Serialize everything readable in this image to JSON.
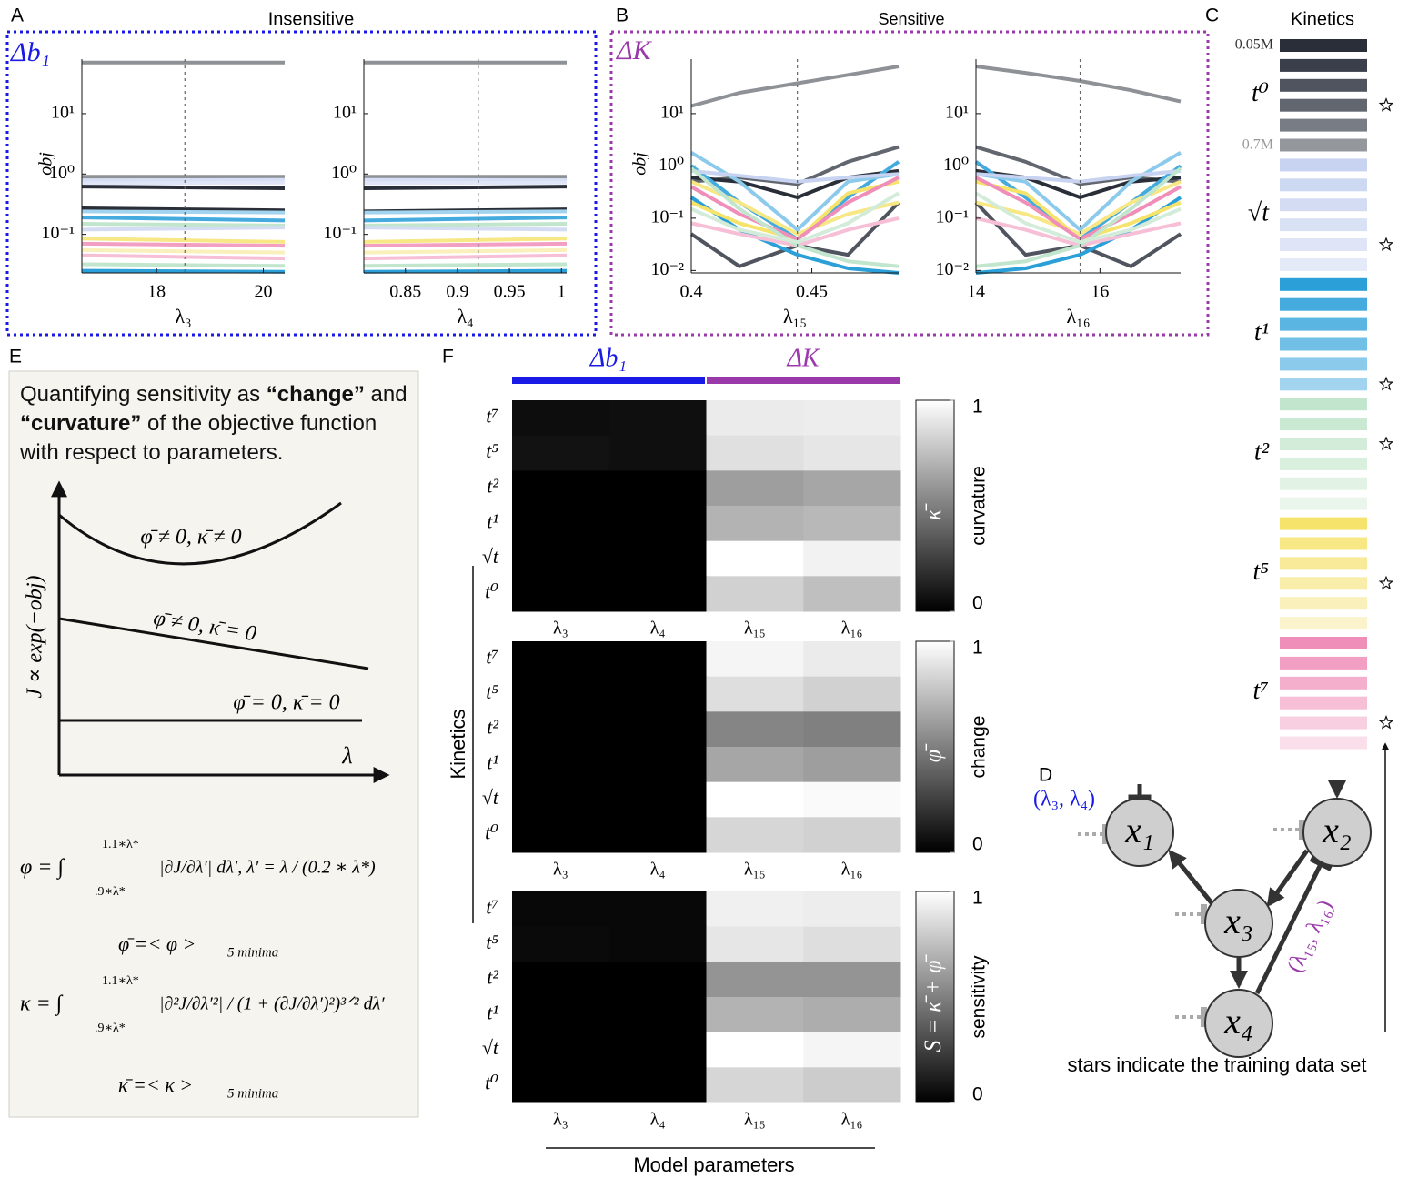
{
  "panel_labels": [
    "A",
    "B",
    "C",
    "D",
    "E",
    "F"
  ],
  "panel_a": {
    "title": "Insensitive",
    "box_label": "Δb₁"
  },
  "panel_b": {
    "title": "Sensitive",
    "box_label": "ΔK"
  },
  "chart_data": [
    {
      "type": "line",
      "y_scale": "log",
      "ylabel": "obj",
      "xlabel": "λ₃",
      "x": [
        16.6,
        20.4
      ],
      "xlim": [
        16.6,
        20.4
      ],
      "xticks": [
        18,
        20
      ],
      "ylim": [
        0.023,
        80
      ],
      "yticks": [
        {
          "value": 0.1,
          "label": "10⁻¹"
        },
        {
          "value": 1,
          "label": "10⁰"
        },
        {
          "value": 10,
          "label": "10¹"
        }
      ],
      "reference_x": 18.53,
      "series": [
        {
          "color": "#8e9196",
          "values": [
            70,
            70
          ]
        },
        {
          "color": "#8e9196",
          "values": [
            0.9,
            0.9
          ]
        },
        {
          "color": "#d6def5",
          "values": [
            0.78,
            0.8
          ]
        },
        {
          "color": "#e0e6f7",
          "values": [
            0.7,
            0.72
          ]
        },
        {
          "color": "#2a2e38",
          "values": [
            0.62,
            0.58
          ]
        },
        {
          "color": "#2a2e38",
          "values": [
            0.27,
            0.25
          ]
        },
        {
          "color": "#a3d4ef",
          "values": [
            0.24,
            0.23
          ]
        },
        {
          "color": "#45aadd",
          "values": [
            0.19,
            0.17
          ]
        },
        {
          "color": "#c2e6cd",
          "values": [
            0.15,
            0.14
          ]
        },
        {
          "color": "#d3dcf3",
          "values": [
            0.12,
            0.13
          ]
        },
        {
          "color": "#f7e785",
          "values": [
            0.085,
            0.075
          ]
        },
        {
          "color": "#f29fc3",
          "values": [
            0.07,
            0.065
          ]
        },
        {
          "color": "#faf0bb",
          "values": [
            0.055,
            0.05
          ]
        },
        {
          "color": "#f6bfd6",
          "values": [
            0.045,
            0.04
          ]
        },
        {
          "color": "#c2e6cd",
          "values": [
            0.032,
            0.03
          ]
        },
        {
          "color": "#2a9fd8",
          "values": [
            0.025,
            0.024
          ]
        }
      ]
    },
    {
      "type": "line",
      "y_scale": "log",
      "xlabel": "λ₄",
      "x": [
        0.81,
        1.005
      ],
      "xlim": [
        0.81,
        1.005
      ],
      "xticks": [
        0.85,
        0.9,
        0.95,
        1
      ],
      "ylim": [
        0.023,
        80
      ],
      "yticks": [
        {
          "value": 0.1,
          "label": "10⁻¹"
        },
        {
          "value": 1,
          "label": "10⁰"
        },
        {
          "value": 10,
          "label": "10¹"
        }
      ],
      "reference_x": 0.92,
      "series": [
        {
          "color": "#8e9196",
          "values": [
            70,
            70
          ]
        },
        {
          "color": "#8e9196",
          "values": [
            0.9,
            0.9
          ]
        },
        {
          "color": "#d6def5",
          "values": [
            0.8,
            0.79
          ]
        },
        {
          "color": "#e0e6f7",
          "values": [
            0.71,
            0.72
          ]
        },
        {
          "color": "#2a2e38",
          "values": [
            0.58,
            0.62
          ]
        },
        {
          "color": "#2a2e38",
          "values": [
            0.24,
            0.26
          ]
        },
        {
          "color": "#a3d4ef",
          "values": [
            0.23,
            0.24
          ]
        },
        {
          "color": "#45aadd",
          "values": [
            0.17,
            0.19
          ]
        },
        {
          "color": "#c2e6cd",
          "values": [
            0.14,
            0.15
          ]
        },
        {
          "color": "#d3dcf3",
          "values": [
            0.13,
            0.12
          ]
        },
        {
          "color": "#f7e785",
          "values": [
            0.075,
            0.085
          ]
        },
        {
          "color": "#f29fc3",
          "values": [
            0.065,
            0.07
          ]
        },
        {
          "color": "#faf0bb",
          "values": [
            0.05,
            0.055
          ]
        },
        {
          "color": "#f6bfd6",
          "values": [
            0.04,
            0.045
          ]
        },
        {
          "color": "#c2e6cd",
          "values": [
            0.03,
            0.032
          ]
        },
        {
          "color": "#2a9fd8",
          "values": [
            0.024,
            0.025
          ]
        }
      ]
    },
    {
      "type": "line",
      "y_scale": "log",
      "ylabel": "obj",
      "xlabel": "λ₁₅",
      "x": [
        0.4,
        0.42,
        0.444,
        0.465,
        0.486
      ],
      "xlim": [
        0.4,
        0.486
      ],
      "xticks": [
        0.4,
        0.45
      ],
      "ylim": [
        0.009,
        110
      ],
      "yticks": [
        {
          "value": 0.01,
          "label": "10⁻²"
        },
        {
          "value": 0.1,
          "label": "10⁻¹"
        },
        {
          "value": 1,
          "label": "10⁰"
        },
        {
          "value": 10,
          "label": "10¹"
        }
      ],
      "reference_x": 0.444,
      "series": [
        {
          "color": "#8e9196",
          "values": [
            14,
            25,
            38,
            55,
            80
          ]
        },
        {
          "color": "#62666f",
          "values": [
            0.5,
            0.6,
            0.45,
            1.2,
            2.3
          ]
        },
        {
          "color": "#2a2e38",
          "values": [
            0.6,
            0.5,
            0.25,
            0.6,
            0.8
          ]
        },
        {
          "color": "#4f545e",
          "values": [
            0.05,
            0.012,
            0.03,
            0.02,
            0.2
          ]
        },
        {
          "color": "#2a9fd8",
          "values": [
            0.25,
            0.06,
            0.02,
            0.011,
            0.009
          ]
        },
        {
          "color": "#45aadd",
          "values": [
            1.0,
            0.2,
            0.04,
            0.25,
            1.2
          ]
        },
        {
          "color": "#8bcaeb",
          "values": [
            1.8,
            0.5,
            0.06,
            0.5,
            0.7
          ]
        },
        {
          "color": "#c7d3f1",
          "values": [
            0.8,
            0.65,
            0.5,
            0.6,
            0.7
          ]
        },
        {
          "color": "#f6e36b",
          "values": [
            0.2,
            0.08,
            0.04,
            0.3,
            0.5
          ]
        },
        {
          "color": "#f7e785",
          "values": [
            0.5,
            0.2,
            0.05,
            0.12,
            0.2
          ]
        },
        {
          "color": "#ef8fb9",
          "values": [
            0.4,
            0.12,
            0.04,
            0.2,
            0.6
          ]
        },
        {
          "color": "#f6bfd6",
          "values": [
            0.08,
            0.05,
            0.03,
            0.06,
            0.1
          ]
        },
        {
          "color": "#c2e6cd",
          "values": [
            0.9,
            0.15,
            0.03,
            0.015,
            0.012
          ]
        },
        {
          "color": "#d2ecd9",
          "values": [
            0.15,
            0.06,
            0.035,
            0.08,
            0.3
          ]
        }
      ]
    },
    {
      "type": "line",
      "y_scale": "log",
      "xlabel": "λ₁₆",
      "x": [
        14,
        14.8,
        15.68,
        16.5,
        17.3
      ],
      "xlim": [
        14,
        17.3
      ],
      "xticks": [
        14,
        16
      ],
      "ylim": [
        0.009,
        110
      ],
      "yticks": [
        {
          "value": 0.01,
          "label": "10⁻²"
        },
        {
          "value": 0.1,
          "label": "10⁻¹"
        },
        {
          "value": 1,
          "label": "10⁰"
        },
        {
          "value": 10,
          "label": "10¹"
        }
      ],
      "reference_x": 15.68,
      "series": [
        {
          "color": "#8e9196",
          "values": [
            80,
            60,
            42,
            28,
            17
          ]
        },
        {
          "color": "#62666f",
          "values": [
            2.3,
            1.2,
            0.45,
            0.6,
            0.5
          ]
        },
        {
          "color": "#2a2e38",
          "values": [
            0.8,
            0.6,
            0.25,
            0.5,
            0.6
          ]
        },
        {
          "color": "#4f545e",
          "values": [
            0.2,
            0.02,
            0.03,
            0.012,
            0.05
          ]
        },
        {
          "color": "#2a9fd8",
          "values": [
            0.009,
            0.011,
            0.02,
            0.06,
            0.25
          ]
        },
        {
          "color": "#45aadd",
          "values": [
            1.2,
            0.25,
            0.04,
            0.2,
            1.0
          ]
        },
        {
          "color": "#8bcaeb",
          "values": [
            0.7,
            0.5,
            0.06,
            0.5,
            1.8
          ]
        },
        {
          "color": "#c7d3f1",
          "values": [
            0.7,
            0.6,
            0.5,
            0.65,
            0.8
          ]
        },
        {
          "color": "#f6e36b",
          "values": [
            0.5,
            0.3,
            0.04,
            0.08,
            0.2
          ]
        },
        {
          "color": "#f7e785",
          "values": [
            0.2,
            0.12,
            0.05,
            0.2,
            0.5
          ]
        },
        {
          "color": "#ef8fb9",
          "values": [
            0.6,
            0.2,
            0.04,
            0.12,
            0.4
          ]
        },
        {
          "color": "#f6bfd6",
          "values": [
            0.1,
            0.06,
            0.03,
            0.05,
            0.08
          ]
        },
        {
          "color": "#c2e6cd",
          "values": [
            0.012,
            0.015,
            0.03,
            0.15,
            0.9
          ]
        },
        {
          "color": "#d2ecd9",
          "values": [
            0.3,
            0.08,
            0.035,
            0.06,
            0.15
          ]
        }
      ]
    },
    {
      "type": "heatmap",
      "rows": [
        "t⁷",
        "t⁵",
        "t²",
        "t¹",
        "√t",
        "t⁰"
      ],
      "columns": [
        "λ₃",
        "λ₄",
        "λ₁₅",
        "λ₁₆"
      ],
      "colorbar_label": "curvature",
      "colorbar_symbol": "κ̄",
      "clim": [
        0,
        1
      ],
      "cticks": [
        0,
        1
      ],
      "values": [
        [
          0.05,
          0.06,
          0.92,
          0.93
        ],
        [
          0.07,
          0.06,
          0.88,
          0.9
        ],
        [
          0,
          0,
          0.62,
          0.65
        ],
        [
          0,
          0,
          0.7,
          0.72
        ],
        [
          0,
          0,
          1,
          0.95
        ],
        [
          0,
          0,
          0.82,
          0.75
        ]
      ]
    },
    {
      "type": "heatmap",
      "rows": [
        "t⁷",
        "t⁵",
        "t²",
        "t¹",
        "√t",
        "t⁰"
      ],
      "columns": [
        "λ₃",
        "λ₄",
        "λ₁₅",
        "λ₁₆"
      ],
      "colorbar_label": "change",
      "colorbar_symbol": "φ̄",
      "clim": [
        0,
        1
      ],
      "cticks": [
        0,
        1
      ],
      "values": [
        [
          0,
          0,
          0.96,
          0.92
        ],
        [
          0,
          0,
          0.87,
          0.82
        ],
        [
          0,
          0,
          0.52,
          0.5
        ],
        [
          0,
          0,
          0.65,
          0.62
        ],
        [
          0,
          0,
          1,
          0.98
        ],
        [
          0,
          0,
          0.84,
          0.82
        ]
      ]
    },
    {
      "type": "heatmap",
      "rows": [
        "t⁷",
        "t⁵",
        "t²",
        "t¹",
        "√t",
        "t⁰"
      ],
      "columns": [
        "λ₃",
        "λ₄",
        "λ₁₅",
        "λ₁₆"
      ],
      "colorbar_label": "sensitivity",
      "colorbar_symbol": "S = κ̄ + φ̄",
      "clim": [
        0,
        1
      ],
      "cticks": [
        0,
        1
      ],
      "values": [
        [
          0.03,
          0.03,
          0.94,
          0.93
        ],
        [
          0.04,
          0.03,
          0.9,
          0.87
        ],
        [
          0,
          0,
          0.58,
          0.58
        ],
        [
          0,
          0,
          0.7,
          0.68
        ],
        [
          0,
          0,
          1,
          0.96
        ],
        [
          0,
          0,
          0.84,
          0.8
        ]
      ]
    }
  ],
  "panel_f": {
    "groups": [
      {
        "label": "Δb₁",
        "color": "#1a1ae6"
      },
      {
        "label": "ΔK",
        "color": "#9a3aaa"
      }
    ],
    "ylabel": "Kinetics",
    "xlabel": "Model parameters"
  },
  "kinetics_legend": {
    "title": "Kinetics",
    "top_note": "0.05M",
    "bottom_note": "0.7M",
    "groups": [
      {
        "label": "t⁰",
        "star": 3,
        "colors": [
          "#2a2e38",
          "#3a3f4b",
          "#4f545e",
          "#62666f",
          "#787c84",
          "#94979c"
        ]
      },
      {
        "label": "√t",
        "star": 4,
        "colors": [
          "#c7d3f1",
          "#cdd8f2",
          "#d3dcf3",
          "#d9e1f5",
          "#dfe5f6",
          "#e5eaf8"
        ]
      },
      {
        "label": "t¹",
        "star": 5,
        "colors": [
          "#2a9fd8",
          "#45aadd",
          "#5ab5e2",
          "#72bfe6",
          "#8bcaeb",
          "#a3d4ef"
        ]
      },
      {
        "label": "t²",
        "star": 2,
        "colors": [
          "#c2e6cd",
          "#cae9d3",
          "#d2ecd9",
          "#daf0df",
          "#e2f3e6",
          "#eaf6ec"
        ]
      },
      {
        "label": "t⁵",
        "star": 3,
        "colors": [
          "#f6e36b",
          "#f7e785",
          "#f8ea98",
          "#f9edaa",
          "#faf0bb",
          "#fbf3cc"
        ]
      },
      {
        "label": "t⁷",
        "star": 4,
        "colors": [
          "#ef8fb9",
          "#f29fc3",
          "#f4afcc",
          "#f6bfd6",
          "#f8cfe0",
          "#fadfea"
        ]
      }
    ]
  },
  "panel_e": {
    "intro": [
      {
        "text": "Quantifying sensitivity as "
      },
      {
        "text": "“change”",
        "bold": true
      },
      {
        "text": " and "
      },
      {
        "text": "“curvature”",
        "bold": true
      },
      {
        "text": " of the objective function with respect to parameters."
      }
    ],
    "ylabel": "J ∝ exp(−obj)",
    "xlabel": "λ",
    "curve_labels": [
      "φ̄ ≠ 0, κ̄ ≠ 0",
      "φ̄ ≠ 0, κ̄ = 0",
      "φ̄ = 0, κ̄ = 0"
    ],
    "equations": [
      {
        "lhs": "φ = ∫",
        "upper": "1.1∗λ*",
        "lower": ".9∗λ*",
        "body": "|∂J/∂λ′| dλ′,  λ′ = λ / (0.2 ∗ λ*)"
      },
      {
        "lhs": "φ̄ =< φ >",
        "sub": "5 minima"
      },
      {
        "lhs": "κ = ∫",
        "upper": "1.1∗λ*",
        "lower": ".9∗λ*",
        "body": "|∂²J/∂λ′²| / (1 + (∂J/∂λ′)²)³ᐟ² dλ′"
      },
      {
        "lhs": "κ̄ =< κ >",
        "sub": "5 minima"
      }
    ]
  },
  "diagram": {
    "nodes": [
      {
        "label": "x₁"
      },
      {
        "label": "x₂"
      },
      {
        "label": "x₃"
      },
      {
        "label": "x₄"
      }
    ],
    "param_labels": [
      {
        "text": "(λ₃, λ₄)",
        "color": "#1a1ae6"
      },
      {
        "text": "(λ₁₅, λ₁₆)",
        "color": "#9a3aaa"
      }
    ],
    "caption": "stars indicate the training data set"
  }
}
